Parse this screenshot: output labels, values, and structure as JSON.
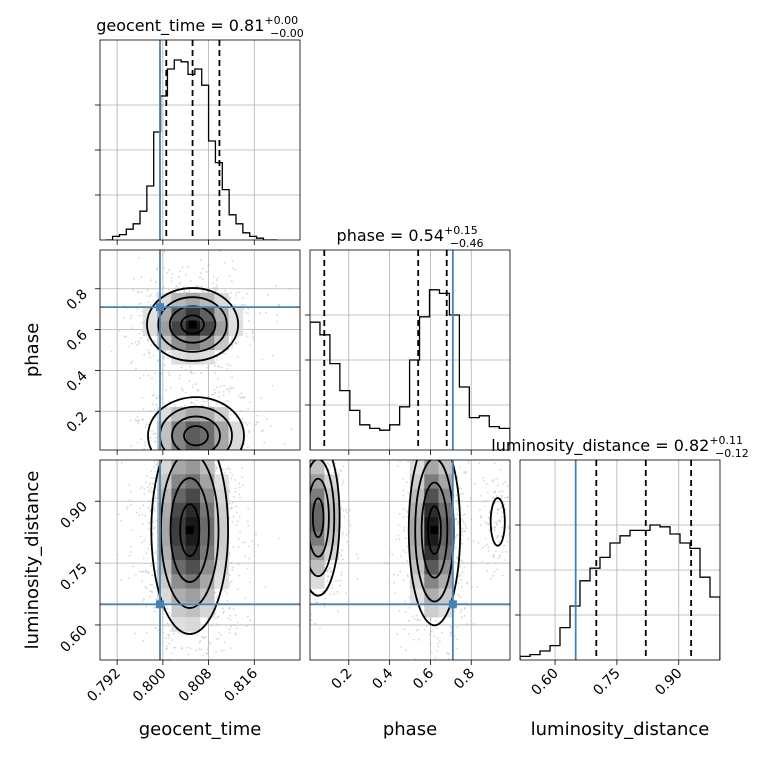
{
  "chart_data": {
    "type": "corner",
    "parameters": [
      "geocent_time",
      "phase",
      "luminosity_distance"
    ],
    "titles": [
      {
        "param": "geocent_time",
        "label": "geocent_time",
        "median": "0.81",
        "plus": "+0.00",
        "minus": "−0.00"
      },
      {
        "param": "phase",
        "label": "phase",
        "median": "0.54",
        "plus": "+0.15",
        "minus": "−0.46"
      },
      {
        "param": "luminosity_distance",
        "label": "luminosity_distance",
        "median": "0.82",
        "plus": "+0.11",
        "minus": "−0.12"
      }
    ],
    "truths": {
      "geocent_time": 0.7995,
      "phase": 0.71,
      "luminosity_distance": 0.65
    },
    "ranges": {
      "geocent_time": [
        0.789,
        0.824
      ],
      "phase": [
        0.01,
        0.99
      ],
      "luminosity_distance": [
        0.515,
        1.0
      ]
    },
    "ticks": {
      "geocent_time": {
        "values": [
          0.792,
          0.8,
          0.808,
          0.816
        ],
        "labels": [
          "0.792",
          "0.800",
          "0.808",
          "0.816"
        ]
      },
      "phase": {
        "values": [
          0.2,
          0.4,
          0.6,
          0.8
        ],
        "labels": [
          "0.2",
          "0.4",
          "0.6",
          "0.8"
        ]
      },
      "luminosity_distance": {
        "values": [
          0.6,
          0.75,
          0.9
        ],
        "labels": [
          "0.60",
          "0.75",
          "0.90"
        ]
      }
    },
    "quantiles": {
      "geocent_time": [
        0.8006,
        0.8052,
        0.8099
      ],
      "phase": [
        0.08,
        0.54,
        0.68
      ],
      "luminosity_distance": [
        0.7,
        0.82,
        0.93
      ]
    },
    "histograms": {
      "geocent_time": {
        "edges": [
          0.79,
          0.7912,
          0.7924,
          0.7936,
          0.7948,
          0.796,
          0.7972,
          0.7984,
          0.7996,
          0.8008,
          0.802,
          0.8032,
          0.8044,
          0.8056,
          0.8068,
          0.808,
          0.8092,
          0.8104,
          0.8116,
          0.8128,
          0.814,
          0.8152,
          0.8164,
          0.8176,
          0.8188,
          0.82
        ],
        "counts": [
          0.0,
          0.02,
          0.03,
          0.06,
          0.09,
          0.16,
          0.3,
          0.6,
          0.8,
          0.95,
          1.0,
          0.99,
          0.92,
          0.95,
          0.86,
          0.55,
          0.43,
          0.28,
          0.14,
          0.09,
          0.04,
          0.02,
          0.01,
          0.0,
          0.0
        ]
      },
      "phase": {
        "edges": [
          0.01,
          0.0588,
          0.1076,
          0.1564,
          0.2052,
          0.254,
          0.3028,
          0.3516,
          0.4004,
          0.4492,
          0.498,
          0.5468,
          0.5956,
          0.6444,
          0.6932,
          0.742,
          0.7908,
          0.8396,
          0.8884,
          0.9372,
          0.99
        ],
        "counts": [
          0.71,
          0.64,
          0.48,
          0.33,
          0.22,
          0.14,
          0.12,
          0.11,
          0.14,
          0.24,
          0.5,
          0.74,
          0.89,
          0.87,
          0.75,
          0.35,
          0.18,
          0.19,
          0.13,
          0.12
        ]
      },
      "luminosity_distance": {
        "edges": [
          0.515,
          0.5393,
          0.5635,
          0.5878,
          0.612,
          0.6363,
          0.6605,
          0.6848,
          0.709,
          0.7333,
          0.7575,
          0.7818,
          0.806,
          0.8303,
          0.8545,
          0.8788,
          0.903,
          0.9273,
          0.9515,
          0.9758,
          1.0
        ],
        "counts": [
          0.02,
          0.03,
          0.05,
          0.08,
          0.18,
          0.3,
          0.44,
          0.51,
          0.57,
          0.65,
          0.69,
          0.72,
          0.72,
          0.75,
          0.74,
          0.7,
          0.65,
          0.62,
          0.46,
          0.35
        ]
      }
    },
    "density_peaks": {
      "geocent_time_vs_phase": [
        {
          "x": 0.8052,
          "y": 0.625,
          "sx": 0.0038,
          "sy": 0.085,
          "w": 1.0
        },
        {
          "x": 0.8058,
          "y": 0.08,
          "sx": 0.004,
          "sy": 0.09,
          "w": 0.75
        }
      ],
      "geocent_time_vs_luminosity_distance": [
        {
          "x": 0.8047,
          "y": 0.83,
          "sx": 0.0032,
          "sy": 0.12,
          "w": 1.0
        }
      ],
      "phase_vs_luminosity_distance": [
        {
          "x": 0.62,
          "y": 0.83,
          "sx": 0.06,
          "sy": 0.11,
          "w": 1.0
        },
        {
          "x": 0.05,
          "y": 0.86,
          "sx": 0.05,
          "sy": 0.09,
          "w": 0.65
        },
        {
          "x": 0.93,
          "y": 0.85,
          "sx": 0.03,
          "sy": 0.05,
          "w": 0.15
        }
      ]
    }
  }
}
